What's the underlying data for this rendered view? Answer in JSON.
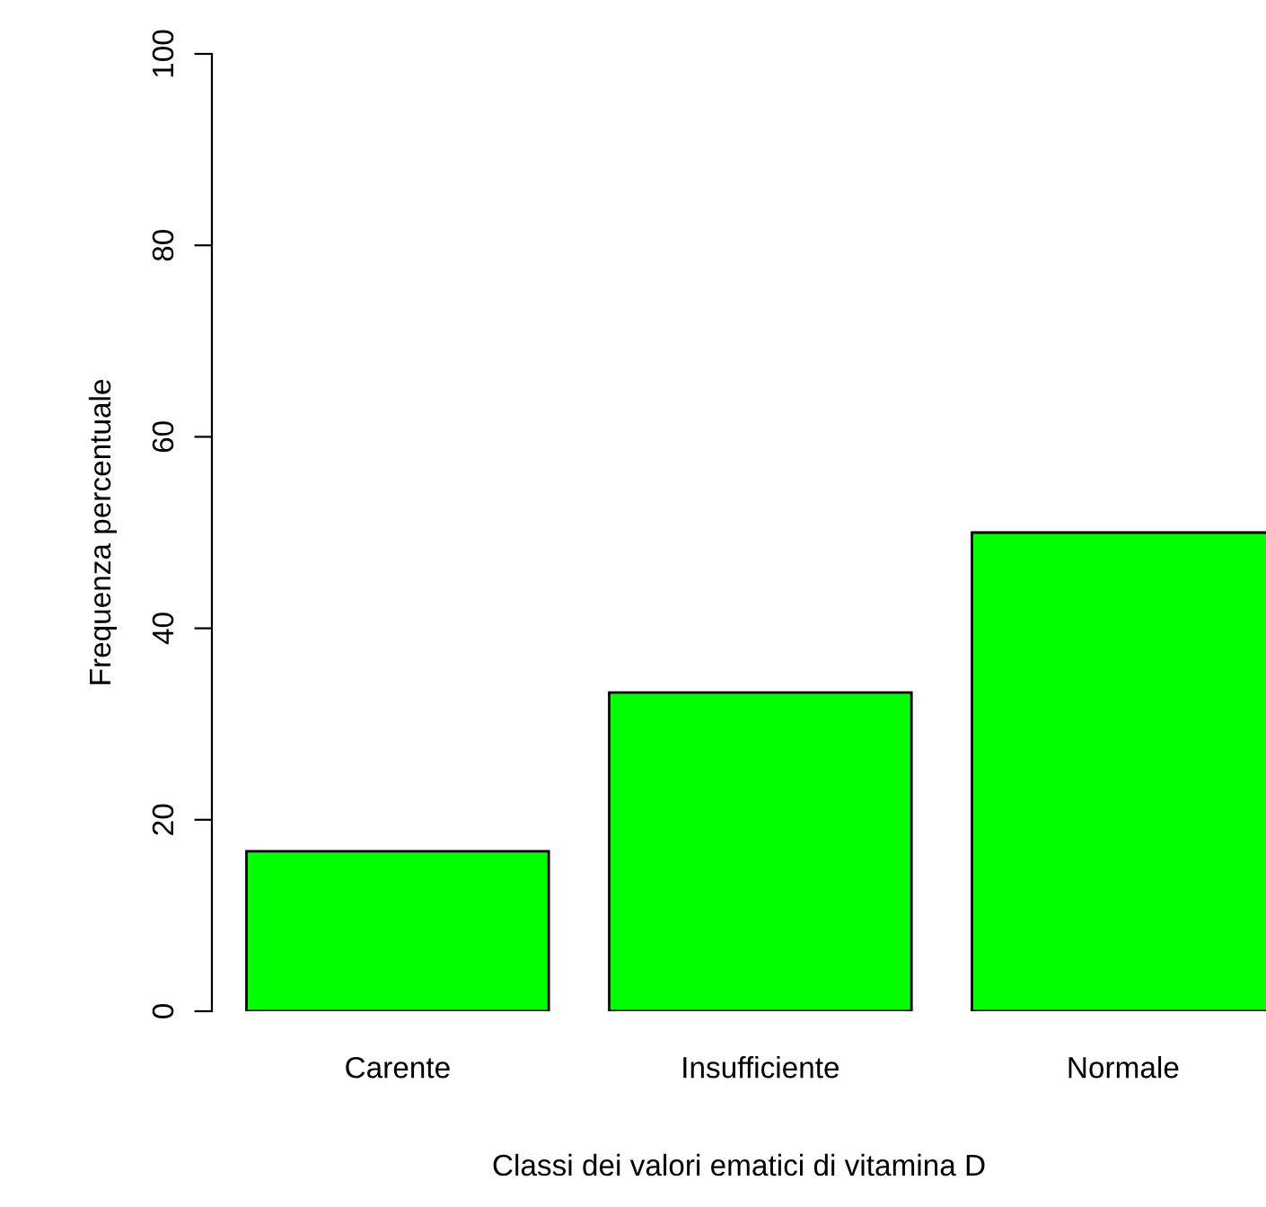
{
  "chart_data": {
    "type": "bar",
    "xlabel": "Classi dei valori ematici di vitamina D",
    "ylabel": "Frequenza percentuale",
    "categories": [
      "Carente",
      "Insufficiente",
      "Normale"
    ],
    "values": [
      16.7,
      33.3,
      50
    ],
    "color": "#00ff00",
    "ylim": [
      0,
      100
    ],
    "yticks": [
      0,
      20,
      40,
      60,
      80,
      100
    ]
  }
}
